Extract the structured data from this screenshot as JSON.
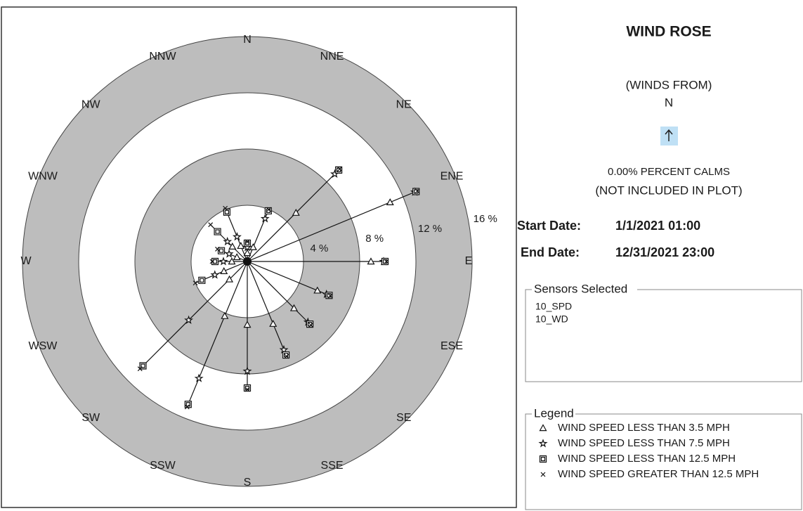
{
  "chart_data": {
    "type": "windrose",
    "directions": [
      "N",
      "NNE",
      "NE",
      "ENE",
      "E",
      "ESE",
      "SE",
      "SSE",
      "S",
      "SSW",
      "SW",
      "WSW",
      "W",
      "WNW",
      "NW",
      "NNW"
    ],
    "rlim": [
      0,
      16
    ],
    "rticks": [
      {
        "value": 4,
        "label": "4 %"
      },
      {
        "value": 8,
        "label": "8 %"
      },
      {
        "value": 12,
        "label": "12 %"
      },
      {
        "value": 16,
        "label": "16 %"
      }
    ],
    "ring_colors": [
      "#ffffff",
      "#bdbdbd"
    ],
    "color": "#111111",
    "series": [
      {
        "name": "WIND SPEED LESS THAN 3.5 MPH",
        "symbol": "triangle",
        "values": [
          0.6,
          1.1,
          4.9,
          11,
          8.8,
          5.4,
          4.7,
          4.8,
          4.5,
          4.2,
          1.8,
          1.8,
          1.1,
          0.8,
          1.5,
          1.2
        ]
      },
      {
        "name": "WIND SPEED LESS THAN 7.5 MPH",
        "symbol": "star",
        "values": [
          0.4,
          2.2,
          3.9,
          1.9,
          0.9,
          0.7,
          1.4,
          2.0,
          3.3,
          4.8,
          4.1,
          0.7,
          0.6,
          0.6,
          0.5,
          0.7
        ]
      },
      {
        "name": "WIND SPEED LESS THAN 12.5 MPH",
        "symbol": "square",
        "values": [
          0.3,
          0.6,
          0.4,
          0.1,
          0.1,
          0.2,
          0.2,
          0.4,
          1.2,
          2.0,
          4.6,
          1.0,
          0.6,
          0.6,
          1.0,
          1.9
        ]
      },
      {
        "name": "WIND SPEED GREATER THAN 12.5 MPH",
        "symbol": "x",
        "values": [
          0.1,
          0.1,
          0.1,
          0.1,
          0.1,
          0.1,
          0.1,
          0.1,
          0.1,
          0.2,
          0.3,
          0.5,
          0.2,
          0.3,
          0.7,
          0.3
        ]
      }
    ]
  },
  "panel": {
    "title": "WIND ROSE",
    "subtitle": "(WINDS FROM)",
    "direction": "N",
    "calms": "0.00% PERCENT CALMS",
    "calms_note": "(NOT INCLUDED IN PLOT)",
    "start_label": "Start Date:",
    "start_value": "1/1/2021  01:00",
    "end_label": "End Date:",
    "end_value": "12/31/2021  23:00",
    "sensors_title": "Sensors Selected",
    "sensors": [
      "10_SPD",
      "10_WD"
    ],
    "legend_title": "Legend"
  }
}
